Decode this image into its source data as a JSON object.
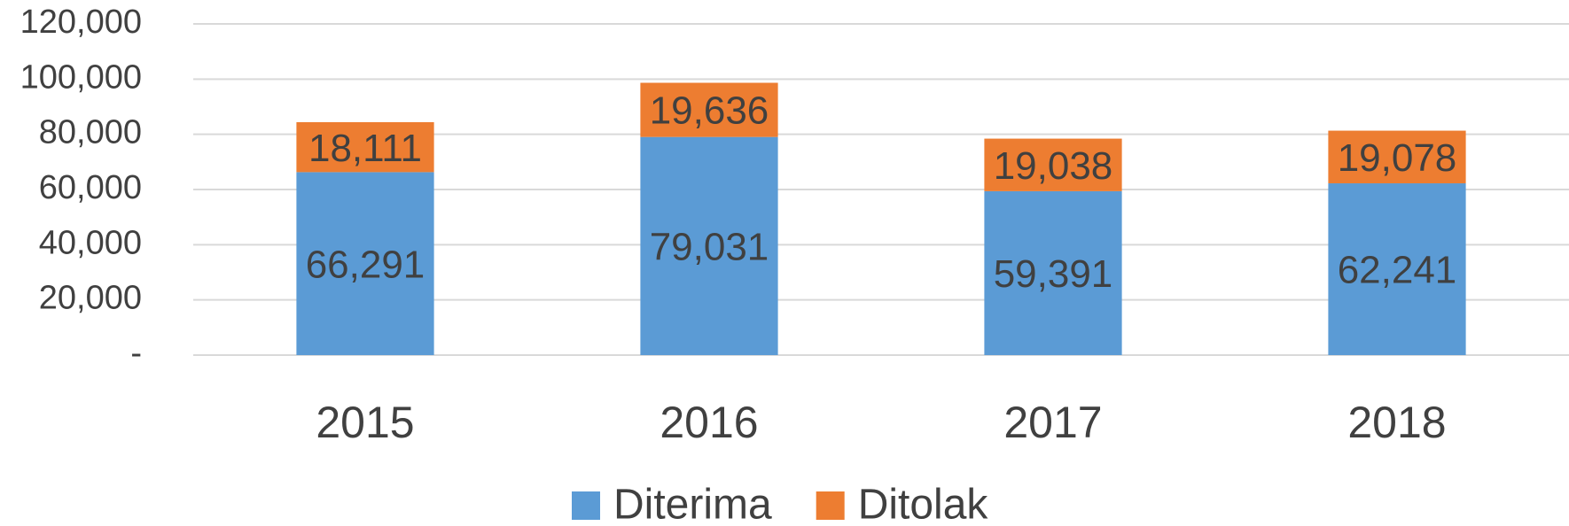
{
  "chart_data": {
    "type": "stacked_bar",
    "categories": [
      "2015",
      "2016",
      "2017",
      "2018"
    ],
    "series": [
      {
        "name": "Diterima",
        "color": "#5b9bd5",
        "values": [
          66291,
          79031,
          59391,
          62241
        ],
        "value_labels": [
          "66,291",
          "79,031",
          "59,391",
          "62,241"
        ]
      },
      {
        "name": "Ditolak",
        "color": "#ed7d31",
        "values": [
          18111,
          19636,
          19038,
          19078
        ],
        "value_labels": [
          "18,111",
          "19,636",
          "19,038",
          "19,078"
        ]
      }
    ],
    "ylim": [
      0,
      120000
    ],
    "yticks": [
      {
        "value": 0,
        "label": "-"
      },
      {
        "value": 20000,
        "label": "20,000"
      },
      {
        "value": 40000,
        "label": "40,000"
      },
      {
        "value": 60000,
        "label": "60,000"
      },
      {
        "value": 80000,
        "label": "80,000"
      },
      {
        "value": 100000,
        "label": "100,000"
      },
      {
        "value": 120000,
        "label": "120,000"
      }
    ],
    "grid": true,
    "legend": "bottom"
  }
}
